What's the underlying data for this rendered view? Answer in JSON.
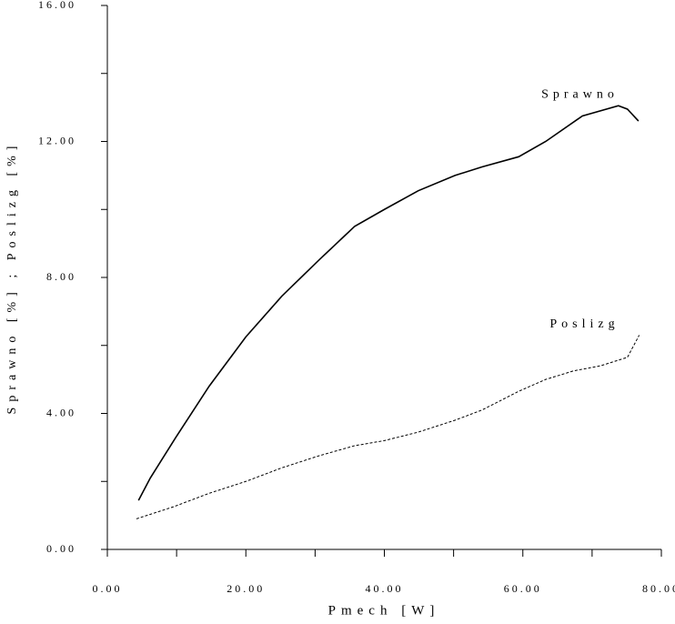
{
  "chart_data": {
    "type": "line",
    "x_label": "Pmech [W]",
    "y_label": "Sprawno [%] ; Poslizg [%]",
    "xlim": [
      0,
      80
    ],
    "xticks": [
      {
        "value": 0,
        "label": "0.00"
      },
      {
        "value": 10
      },
      {
        "value": 20,
        "label": "20.00"
      },
      {
        "value": 30
      },
      {
        "value": 40,
        "label": "40.00"
      },
      {
        "value": 50
      },
      {
        "value": 60,
        "label": "60.00"
      },
      {
        "value": 70
      },
      {
        "value": 80,
        "label": "80.00"
      }
    ],
    "ylim": [
      0,
      16
    ],
    "yticks": [
      {
        "value": 0,
        "label": "0.00"
      },
      {
        "value": 2
      },
      {
        "value": 4,
        "label": "4.00"
      },
      {
        "value": 6
      },
      {
        "value": 8,
        "label": "8.00"
      },
      {
        "value": 10
      },
      {
        "value": 12,
        "label": "12.00"
      },
      {
        "value": 14
      },
      {
        "value": 16,
        "label": "16.00"
      }
    ],
    "series": [
      {
        "name": "Sprawno",
        "color": "#000000",
        "dash": false,
        "x": [
          4.5,
          6.2,
          9.9,
          14.7,
          20,
          25.2,
          30.5,
          35.7,
          40,
          44.9,
          50.2,
          54.1,
          59.4,
          63.3,
          68.6,
          73.8,
          75.1,
          76.7
        ],
        "values": [
          1.44,
          2.1,
          3.3,
          4.8,
          6.25,
          7.45,
          8.5,
          9.5,
          10,
          10.55,
          11.0,
          11.25,
          11.55,
          12.0,
          12.75,
          13.05,
          12.95,
          12.6
        ]
      },
      {
        "name": "Poslizg",
        "color": "#000000",
        "dash": true,
        "x": [
          4.2,
          9.5,
          14.7,
          20,
          25.2,
          30.5,
          35.7,
          40,
          44.9,
          50.2,
          54.1,
          59.4,
          63.3,
          67.3,
          71.2,
          75.1,
          76.8
        ],
        "values": [
          0.9,
          1.25,
          1.65,
          2.0,
          2.4,
          2.75,
          3.05,
          3.2,
          3.45,
          3.8,
          4.1,
          4.65,
          5.0,
          5.25,
          5.4,
          5.65,
          6.3
        ]
      }
    ]
  }
}
